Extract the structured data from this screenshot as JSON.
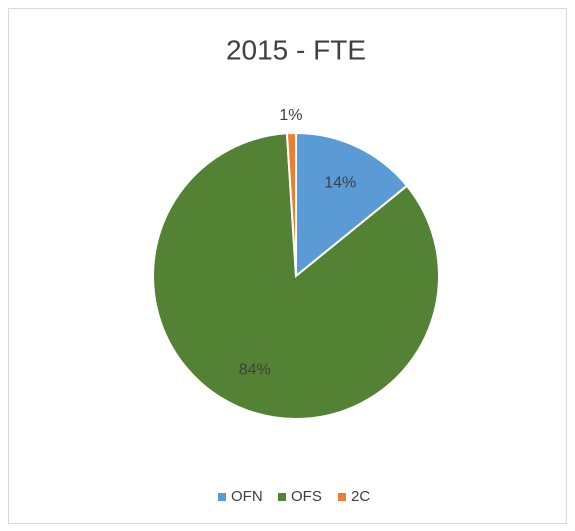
{
  "chart_data": {
    "type": "pie",
    "title": "2015 - FTE",
    "categories": [
      "OFN",
      "OFS",
      "2C"
    ],
    "values": [
      14,
      84,
      1
    ],
    "value_labels": [
      "14%",
      "84%",
      "1%"
    ],
    "colors": [
      "#5b9bd5",
      "#548235",
      "#ed7d31"
    ],
    "legend": "bottom"
  }
}
